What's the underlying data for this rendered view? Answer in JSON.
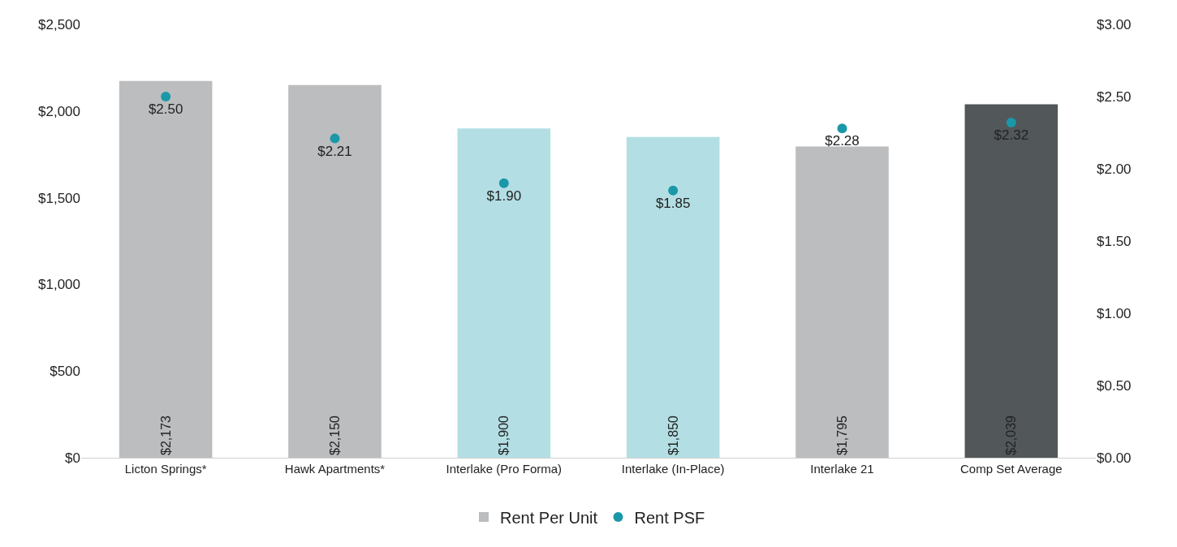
{
  "chart_data": {
    "type": "bar",
    "categories": [
      "Licton Springs*",
      "Hawk Apartments*",
      "Interlake (Pro Forma)",
      "Interlake (In-Place)",
      "Interlake 21",
      "Comp Set Average"
    ],
    "series": [
      {
        "name": "Rent Per Unit",
        "colors": [
          "#bbbdbe",
          "#bbbdbe",
          "#b3dfe4",
          "#b3dfe4",
          "#bbbdbe",
          "#525759"
        ],
        "values": [
          2173,
          2150,
          1900,
          1850,
          1795,
          2039
        ],
        "value_labels": [
          "$2,173",
          "$2,150",
          "$1,900",
          "$1,850",
          "$1,795",
          "$2,039"
        ]
      },
      {
        "name": "Rent PSF",
        "type": "scatter",
        "axis": "y2",
        "color": "#1a98a8",
        "values": [
          2.5,
          2.21,
          1.9,
          1.85,
          2.28,
          2.32
        ],
        "value_labels": [
          "$2.50",
          "$2.21",
          "$1.90",
          "$1.85",
          "$2.28",
          "$2.32"
        ]
      }
    ],
    "ylim": [
      0,
      2500
    ],
    "yticks": [
      {
        "value": 0,
        "label": "$0"
      },
      {
        "value": 500,
        "label": "$500"
      },
      {
        "value": 1000,
        "label": "$1,000"
      },
      {
        "value": 1500,
        "label": "$1,500"
      },
      {
        "value": 2000,
        "label": "$2,000"
      },
      {
        "value": 2500,
        "label": "$2,500"
      }
    ],
    "y2lim": [
      0,
      3
    ],
    "y2ticks": [
      {
        "value": 0,
        "label": "$0.00"
      },
      {
        "value": 0.5,
        "label": "$0.50"
      },
      {
        "value": 1,
        "label": "$1.00"
      },
      {
        "value": 1.5,
        "label": "$1.50"
      },
      {
        "value": 2,
        "label": "$2.00"
      },
      {
        "value": 2.5,
        "label": "$2.50"
      },
      {
        "value": 3,
        "label": "$3.00"
      }
    ],
    "legend": "bottom",
    "marker": "circle"
  }
}
